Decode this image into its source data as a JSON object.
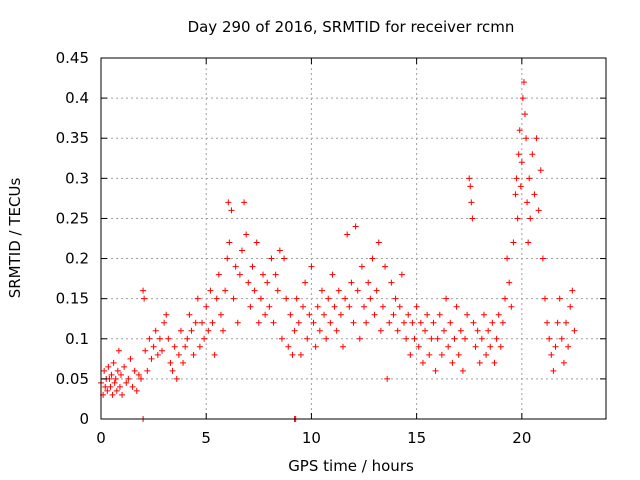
{
  "chart_data": {
    "type": "scatter",
    "title": "Day 290 of 2016, SRMTID for receiver rcmn",
    "xlabel": "GPS time / hours",
    "ylabel": "SRMTID / TECUs",
    "xlim": [
      0,
      24
    ],
    "ylim": [
      0,
      0.45
    ],
    "x_ticks": [
      "0",
      "5",
      "10",
      "15",
      "20"
    ],
    "y_ticks": [
      "0",
      "0.05",
      "0.1",
      "0.15",
      "0.2",
      "0.25",
      "0.3",
      "0.35",
      "0.4",
      "0.45"
    ],
    "grid": true,
    "marker": "+",
    "series_color": "#ff0000",
    "series": [
      {
        "name": "SRMTID",
        "points": [
          [
            0.0,
            0.045
          ],
          [
            0.1,
            0.03
          ],
          [
            0.15,
            0.06
          ],
          [
            0.2,
            0.04
          ],
          [
            0.25,
            0.05
          ],
          [
            0.3,
            0.035
          ],
          [
            0.35,
            0.065
          ],
          [
            0.4,
            0.05
          ],
          [
            0.45,
            0.04
          ],
          [
            0.5,
            0.055
          ],
          [
            0.55,
            0.03
          ],
          [
            0.6,
            0.07
          ],
          [
            0.65,
            0.045
          ],
          [
            0.7,
            0.05
          ],
          [
            0.75,
            0.035
          ],
          [
            0.8,
            0.06
          ],
          [
            0.85,
            0.085
          ],
          [
            0.9,
            0.04
          ],
          [
            0.95,
            0.055
          ],
          [
            1.0,
            0.03
          ],
          [
            1.1,
            0.065
          ],
          [
            1.2,
            0.045
          ],
          [
            1.3,
            0.05
          ],
          [
            1.4,
            0.075
          ],
          [
            1.5,
            0.04
          ],
          [
            1.6,
            0.06
          ],
          [
            1.7,
            0.035
          ],
          [
            1.8,
            0.055
          ],
          [
            1.9,
            0.05
          ],
          [
            2.0,
            0.16
          ],
          [
            2.05,
            0.15
          ],
          [
            2.1,
            0.085
          ],
          [
            2.2,
            0.06
          ],
          [
            2.3,
            0.1
          ],
          [
            2.4,
            0.075
          ],
          [
            2.5,
            0.09
          ],
          [
            2.6,
            0.11
          ],
          [
            2.7,
            0.08
          ],
          [
            2.8,
            0.1
          ],
          [
            2.9,
            0.085
          ],
          [
            3.0,
            0.12
          ],
          [
            3.1,
            0.13
          ],
          [
            3.2,
            0.1
          ],
          [
            3.3,
            0.07
          ],
          [
            3.4,
            0.06
          ],
          [
            3.5,
            0.09
          ],
          [
            3.6,
            0.05
          ],
          [
            3.7,
            0.08
          ],
          [
            3.8,
            0.11
          ],
          [
            3.9,
            0.07
          ],
          [
            4.0,
            0.09
          ],
          [
            4.1,
            0.1
          ],
          [
            4.2,
            0.13
          ],
          [
            4.3,
            0.11
          ],
          [
            4.4,
            0.08
          ],
          [
            4.5,
            0.12
          ],
          [
            4.6,
            0.15
          ],
          [
            4.7,
            0.09
          ],
          [
            4.8,
            0.12
          ],
          [
            4.9,
            0.1
          ],
          [
            5.0,
            0.14
          ],
          [
            5.1,
            0.11
          ],
          [
            5.2,
            0.16
          ],
          [
            5.3,
            0.12
          ],
          [
            5.4,
            0.08
          ],
          [
            5.5,
            0.15
          ],
          [
            5.6,
            0.18
          ],
          [
            5.7,
            0.13
          ],
          [
            5.8,
            0.11
          ],
          [
            5.9,
            0.16
          ],
          [
            6.0,
            0.2
          ],
          [
            6.05,
            0.27
          ],
          [
            6.1,
            0.22
          ],
          [
            6.2,
            0.26
          ],
          [
            6.3,
            0.15
          ],
          [
            6.4,
            0.19
          ],
          [
            6.5,
            0.12
          ],
          [
            6.6,
            0.18
          ],
          [
            6.7,
            0.21
          ],
          [
            6.8,
            0.27
          ],
          [
            6.9,
            0.23
          ],
          [
            7.0,
            0.17
          ],
          [
            7.1,
            0.14
          ],
          [
            7.2,
            0.19
          ],
          [
            7.3,
            0.16
          ],
          [
            7.4,
            0.22
          ],
          [
            7.5,
            0.12
          ],
          [
            7.6,
            0.15
          ],
          [
            7.7,
            0.18
          ],
          [
            7.8,
            0.13
          ],
          [
            7.9,
            0.17
          ],
          [
            8.0,
            0.14
          ],
          [
            8.1,
            0.2
          ],
          [
            8.2,
            0.12
          ],
          [
            8.3,
            0.18
          ],
          [
            8.4,
            0.16
          ],
          [
            8.5,
            0.21
          ],
          [
            8.6,
            0.1
          ],
          [
            8.7,
            0.2
          ],
          [
            8.8,
            0.15
          ],
          [
            8.9,
            0.09
          ],
          [
            9.0,
            0.13
          ],
          [
            9.1,
            0.08
          ],
          [
            9.2,
            0.11
          ],
          [
            9.3,
            0.15
          ],
          [
            9.4,
            0.12
          ],
          [
            9.5,
            0.08
          ],
          [
            9.6,
            0.14
          ],
          [
            9.7,
            0.17
          ],
          [
            9.8,
            0.1
          ],
          [
            9.9,
            0.13
          ],
          [
            10.0,
            0.19
          ],
          [
            10.1,
            0.12
          ],
          [
            10.2,
            0.09
          ],
          [
            10.3,
            0.14
          ],
          [
            10.4,
            0.11
          ],
          [
            10.5,
            0.16
          ],
          [
            10.6,
            0.13
          ],
          [
            10.7,
            0.1
          ],
          [
            10.8,
            0.15
          ],
          [
            10.9,
            0.12
          ],
          [
            11.0,
            0.18
          ],
          [
            11.1,
            0.14
          ],
          [
            11.2,
            0.11
          ],
          [
            11.3,
            0.16
          ],
          [
            11.4,
            0.13
          ],
          [
            11.5,
            0.09
          ],
          [
            11.6,
            0.15
          ],
          [
            11.7,
            0.23
          ],
          [
            11.8,
            0.14
          ],
          [
            11.9,
            0.17
          ],
          [
            12.0,
            0.12
          ],
          [
            12.1,
            0.24
          ],
          [
            12.2,
            0.16
          ],
          [
            12.3,
            0.1
          ],
          [
            12.4,
            0.19
          ],
          [
            12.5,
            0.14
          ],
          [
            12.6,
            0.12
          ],
          [
            12.7,
            0.17
          ],
          [
            12.8,
            0.15
          ],
          [
            12.9,
            0.2
          ],
          [
            13.0,
            0.13
          ],
          [
            13.1,
            0.16
          ],
          [
            13.2,
            0.22
          ],
          [
            13.3,
            0.11
          ],
          [
            13.4,
            0.14
          ],
          [
            13.5,
            0.19
          ],
          [
            13.6,
            0.05
          ],
          [
            13.7,
            0.12
          ],
          [
            13.8,
            0.17
          ],
          [
            13.9,
            0.13
          ],
          [
            14.0,
            0.15
          ],
          [
            14.1,
            0.11
          ],
          [
            14.2,
            0.14
          ],
          [
            14.3,
            0.18
          ],
          [
            14.4,
            0.12
          ],
          [
            14.5,
            0.1
          ],
          [
            14.6,
            0.13
          ],
          [
            14.7,
            0.08
          ],
          [
            14.8,
            0.12
          ],
          [
            14.9,
            0.1
          ],
          [
            15.0,
            0.14
          ],
          [
            15.1,
            0.09
          ],
          [
            15.2,
            0.12
          ],
          [
            15.3,
            0.07
          ],
          [
            15.4,
            0.11
          ],
          [
            15.5,
            0.13
          ],
          [
            15.6,
            0.08
          ],
          [
            15.7,
            0.1
          ],
          [
            15.8,
            0.12
          ],
          [
            15.9,
            0.06
          ],
          [
            16.0,
            0.1
          ],
          [
            16.1,
            0.13
          ],
          [
            16.2,
            0.08
          ],
          [
            16.3,
            0.11
          ],
          [
            16.4,
            0.15
          ],
          [
            16.5,
            0.09
          ],
          [
            16.6,
            0.12
          ],
          [
            16.7,
            0.07
          ],
          [
            16.8,
            0.1
          ],
          [
            16.9,
            0.14
          ],
          [
            17.0,
            0.08
          ],
          [
            17.1,
            0.11
          ],
          [
            17.2,
            0.06
          ],
          [
            17.3,
            0.1
          ],
          [
            17.4,
            0.13
          ],
          [
            17.5,
            0.3
          ],
          [
            17.55,
            0.29
          ],
          [
            17.6,
            0.27
          ],
          [
            17.65,
            0.25
          ],
          [
            17.7,
            0.12
          ],
          [
            17.8,
            0.09
          ],
          [
            17.9,
            0.11
          ],
          [
            18.0,
            0.07
          ],
          [
            18.1,
            0.1
          ],
          [
            18.2,
            0.13
          ],
          [
            18.3,
            0.08
          ],
          [
            18.4,
            0.11
          ],
          [
            18.5,
            0.09
          ],
          [
            18.6,
            0.12
          ],
          [
            18.7,
            0.07
          ],
          [
            18.8,
            0.1
          ],
          [
            18.9,
            0.13
          ],
          [
            19.0,
            0.09
          ],
          [
            19.1,
            0.12
          ],
          [
            19.2,
            0.15
          ],
          [
            19.3,
            0.2
          ],
          [
            19.4,
            0.17
          ],
          [
            19.5,
            0.14
          ],
          [
            19.6,
            0.22
          ],
          [
            19.7,
            0.28
          ],
          [
            19.75,
            0.3
          ],
          [
            19.8,
            0.25
          ],
          [
            19.85,
            0.33
          ],
          [
            19.9,
            0.36
          ],
          [
            19.95,
            0.29
          ],
          [
            20.0,
            0.32
          ],
          [
            20.05,
            0.4
          ],
          [
            20.1,
            0.42
          ],
          [
            20.15,
            0.38
          ],
          [
            20.2,
            0.35
          ],
          [
            20.25,
            0.27
          ],
          [
            20.3,
            0.22
          ],
          [
            20.35,
            0.3
          ],
          [
            20.4,
            0.25
          ],
          [
            20.5,
            0.33
          ],
          [
            20.6,
            0.28
          ],
          [
            20.7,
            0.35
          ],
          [
            20.8,
            0.26
          ],
          [
            20.9,
            0.31
          ],
          [
            21.0,
            0.2
          ],
          [
            21.1,
            0.15
          ],
          [
            21.2,
            0.12
          ],
          [
            21.3,
            0.1
          ],
          [
            21.4,
            0.08
          ],
          [
            21.5,
            0.06
          ],
          [
            21.6,
            0.09
          ],
          [
            21.7,
            0.12
          ],
          [
            21.8,
            0.15
          ],
          [
            21.9,
            0.1
          ],
          [
            22.0,
            0.07
          ],
          [
            22.1,
            0.12
          ],
          [
            22.2,
            0.09
          ],
          [
            22.3,
            0.14
          ],
          [
            22.4,
            0.16
          ],
          [
            22.5,
            0.11
          ],
          [
            2.0,
            0.0
          ],
          [
            9.2,
            0.0
          ],
          [
            9.25,
            0.0
          ]
        ]
      }
    ]
  }
}
